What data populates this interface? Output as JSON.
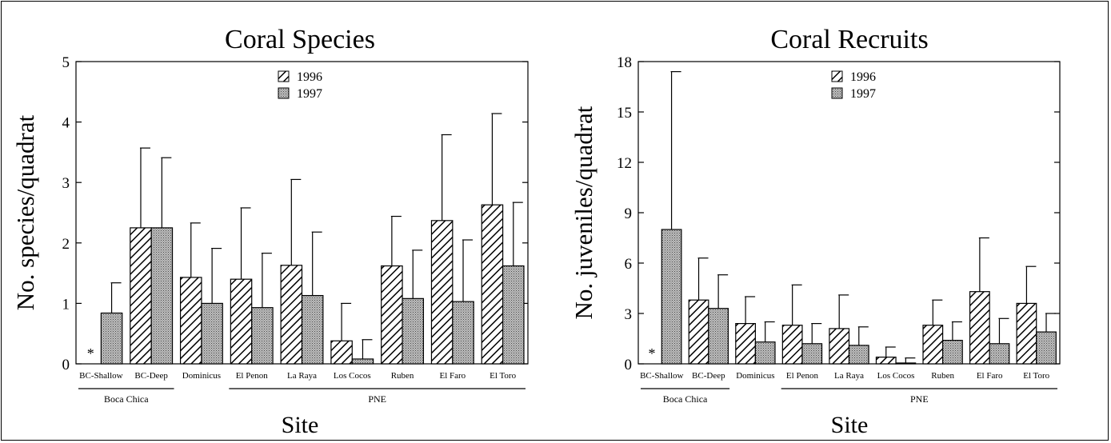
{
  "chart_data": [
    {
      "type": "bar",
      "title": "Coral Species",
      "xlabel": "Site",
      "ylabel": "No. species/quadrat",
      "ylim": [
        0,
        5
      ],
      "yticks": [
        0,
        1,
        2,
        3,
        4,
        5
      ],
      "categories": [
        "BC-Shallow",
        "BC-Deep",
        "Dominicus",
        "El Penon",
        "La Raya",
        "Los Cocos",
        "Ruben",
        "El Faro",
        "El Toro"
      ],
      "groups": [
        {
          "label": "Boca Chica",
          "categories": [
            "BC-Shallow",
            "BC-Deep"
          ]
        },
        {
          "label": "PNE",
          "categories": [
            "El Penon",
            "La Raya",
            "Los Cocos",
            "Ruben",
            "El Faro",
            "El Toro"
          ]
        }
      ],
      "legend": "top-center",
      "series": [
        {
          "name": "1996",
          "pattern": "hatched",
          "values": [
            null,
            2.25,
            1.43,
            1.4,
            1.63,
            0.38,
            1.62,
            2.37,
            2.63
          ],
          "errors": [
            null,
            1.32,
            0.9,
            1.18,
            1.42,
            0.62,
            0.82,
            1.42,
            1.51
          ]
        },
        {
          "name": "1997",
          "pattern": "stippled",
          "values": [
            0.84,
            2.25,
            1.0,
            0.93,
            1.13,
            0.08,
            1.08,
            1.03,
            1.62
          ],
          "errors": [
            0.5,
            1.16,
            0.91,
            0.9,
            1.05,
            0.32,
            0.8,
            1.02,
            1.05
          ]
        }
      ],
      "annotations": [
        {
          "category": "BC-Shallow",
          "series": "1996",
          "text": "*"
        }
      ]
    },
    {
      "type": "bar",
      "title": "Coral Recruits",
      "xlabel": "Site",
      "ylabel": "No. juveniles/quadrat",
      "ylim": [
        0,
        18
      ],
      "yticks": [
        0,
        3,
        6,
        9,
        12,
        15,
        18
      ],
      "categories": [
        "BC-Shallow",
        "BC-Deep",
        "Dominicus",
        "El Penon",
        "La Raya",
        "Los Cocos",
        "Ruben",
        "El Faro",
        "El Toro"
      ],
      "groups": [
        {
          "label": "Boca Chica",
          "categories": [
            "BC-Shallow",
            "BC-Deep"
          ]
        },
        {
          "label": "PNE",
          "categories": [
            "El Penon",
            "La Raya",
            "Los Cocos",
            "Ruben",
            "El Faro",
            "El Toro"
          ]
        }
      ],
      "legend": "top-center",
      "series": [
        {
          "name": "1996",
          "pattern": "hatched",
          "values": [
            null,
            3.8,
            2.4,
            2.3,
            2.1,
            0.4,
            2.3,
            4.3,
            3.6
          ],
          "errors": [
            null,
            2.5,
            1.6,
            2.4,
            2.0,
            0.6,
            1.5,
            3.2,
            2.2
          ]
        },
        {
          "name": "1997",
          "pattern": "stippled",
          "values": [
            8.0,
            3.3,
            1.3,
            1.2,
            1.1,
            0.05,
            1.4,
            1.2,
            1.9
          ],
          "errors": [
            9.4,
            2.0,
            1.2,
            1.2,
            1.1,
            0.3,
            1.1,
            1.5,
            1.1
          ]
        }
      ],
      "annotations": [
        {
          "category": "BC-Shallow",
          "series": "1996",
          "text": "*"
        }
      ]
    }
  ]
}
